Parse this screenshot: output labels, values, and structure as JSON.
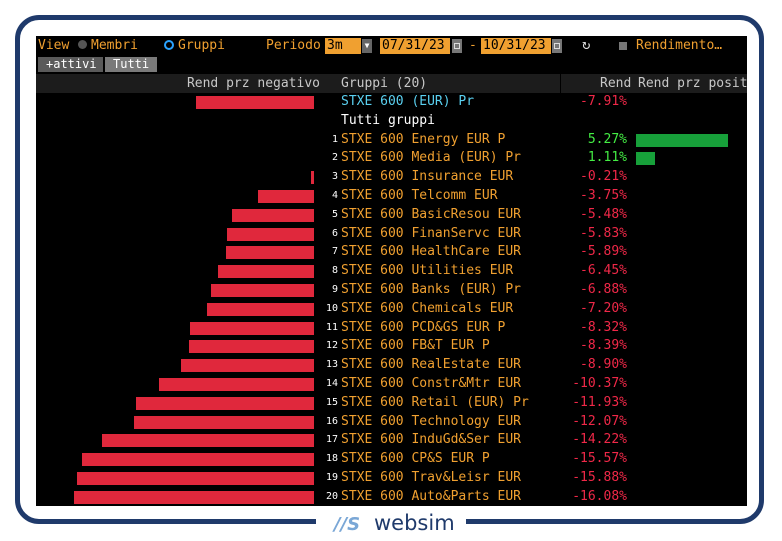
{
  "toolbar": {
    "view_label": "View",
    "membri_label": "Membri",
    "gruppi_label": "Gruppi",
    "periodo_label": "Periodo",
    "period_value": "3m",
    "date_from": "07/31/23",
    "date_sep": "-",
    "date_to": "10/31/23",
    "rendimento_label": "Rendimento…"
  },
  "tabs": {
    "attivi": "+attivi",
    "tutti": "Tutti"
  },
  "header": {
    "neg_col": "Rend prz negativo",
    "group_col": "Gruppi (20)",
    "rend_col": "Rend",
    "pos_col": "Rend prz positiv"
  },
  "summary": {
    "name": "STXE 600 (EUR) Pr",
    "value": "-7.91%",
    "return": -7.91
  },
  "section_label": "Tutti gruppi",
  "rows": [
    {
      "num": "1",
      "name": "STXE 600 Energy EUR P",
      "value": "5.27%",
      "return": 5.27
    },
    {
      "num": "2",
      "name": "STXE 600 Media (EUR) Pr",
      "value": "1.11%",
      "return": 1.11
    },
    {
      "num": "3",
      "name": "STXE 600 Insurance EUR",
      "value": "-0.21%",
      "return": -0.21
    },
    {
      "num": "4",
      "name": "STXE 600 Telcomm EUR",
      "value": "-3.75%",
      "return": -3.75
    },
    {
      "num": "5",
      "name": "STXE 600 BasicResou EUR",
      "value": "-5.48%",
      "return": -5.48
    },
    {
      "num": "6",
      "name": "STXE 600 FinanServc EUR",
      "value": "-5.83%",
      "return": -5.83
    },
    {
      "num": "7",
      "name": "STXE 600 HealthCare EUR",
      "value": "-5.89%",
      "return": -5.89
    },
    {
      "num": "8",
      "name": "STXE 600 Utilities EUR",
      "value": "-6.45%",
      "return": -6.45
    },
    {
      "num": "9",
      "name": "STXE 600 Banks (EUR) Pr",
      "value": "-6.88%",
      "return": -6.88
    },
    {
      "num": "10",
      "name": "STXE 600 Chemicals EUR",
      "value": "-7.20%",
      "return": -7.2
    },
    {
      "num": "11",
      "name": "STXE 600 PCD&GS EUR P",
      "value": "-8.32%",
      "return": -8.32
    },
    {
      "num": "12",
      "name": "STXE 600 FB&T EUR P",
      "value": "-8.39%",
      "return": -8.39
    },
    {
      "num": "13",
      "name": "STXE 600 RealEstate EUR",
      "value": "-8.90%",
      "return": -8.9
    },
    {
      "num": "14",
      "name": "STXE 600 Constr&Mtr EUR",
      "value": "-10.37%",
      "return": -10.37
    },
    {
      "num": "15",
      "name": "STXE 600 Retail (EUR) Pr",
      "value": "-11.93%",
      "return": -11.93
    },
    {
      "num": "16",
      "name": "STXE 600 Technology EUR",
      "value": "-12.07%",
      "return": -12.07
    },
    {
      "num": "17",
      "name": "STXE 600 InduGd&Ser EUR",
      "value": "-14.22%",
      "return": -14.22
    },
    {
      "num": "18",
      "name": "STXE 600 CP&S EUR P",
      "value": "-15.57%",
      "return": -15.57
    },
    {
      "num": "19",
      "name": "STXE 600 Trav&Leisr EUR",
      "value": "-15.88%",
      "return": -15.88
    },
    {
      "num": "20",
      "name": "STXE 600 Auto&Parts EUR",
      "value": "-16.08%",
      "return": -16.08
    }
  ],
  "logo": {
    "mark": "//S",
    "text": "websim"
  },
  "colors": {
    "frame": "#1f3a6b",
    "neg_bar": "#e0283c",
    "pos_bar": "#17a03a",
    "accent": "#f0a030"
  }
}
